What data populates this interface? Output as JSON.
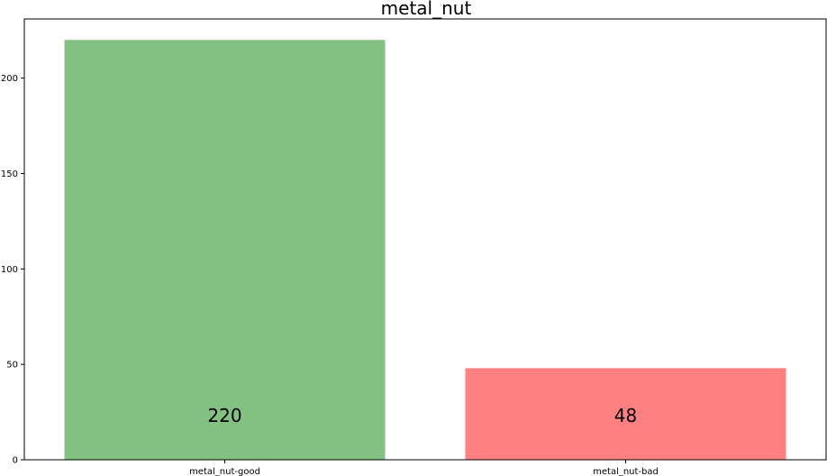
{
  "chart_data": {
    "type": "bar",
    "title": "metal_nut",
    "xlabel": "",
    "ylabel": "",
    "categories": [
      "metal_nut-good",
      "metal_nut-bad"
    ],
    "values": [
      220,
      48
    ],
    "bar_labels": [
      "220",
      "48"
    ],
    "colors": [
      "#82c182",
      "#ff8080"
    ],
    "ylim": [
      0,
      231
    ],
    "yticks": [
      0,
      50,
      100,
      150,
      200
    ],
    "grid": false,
    "legend": "none"
  }
}
